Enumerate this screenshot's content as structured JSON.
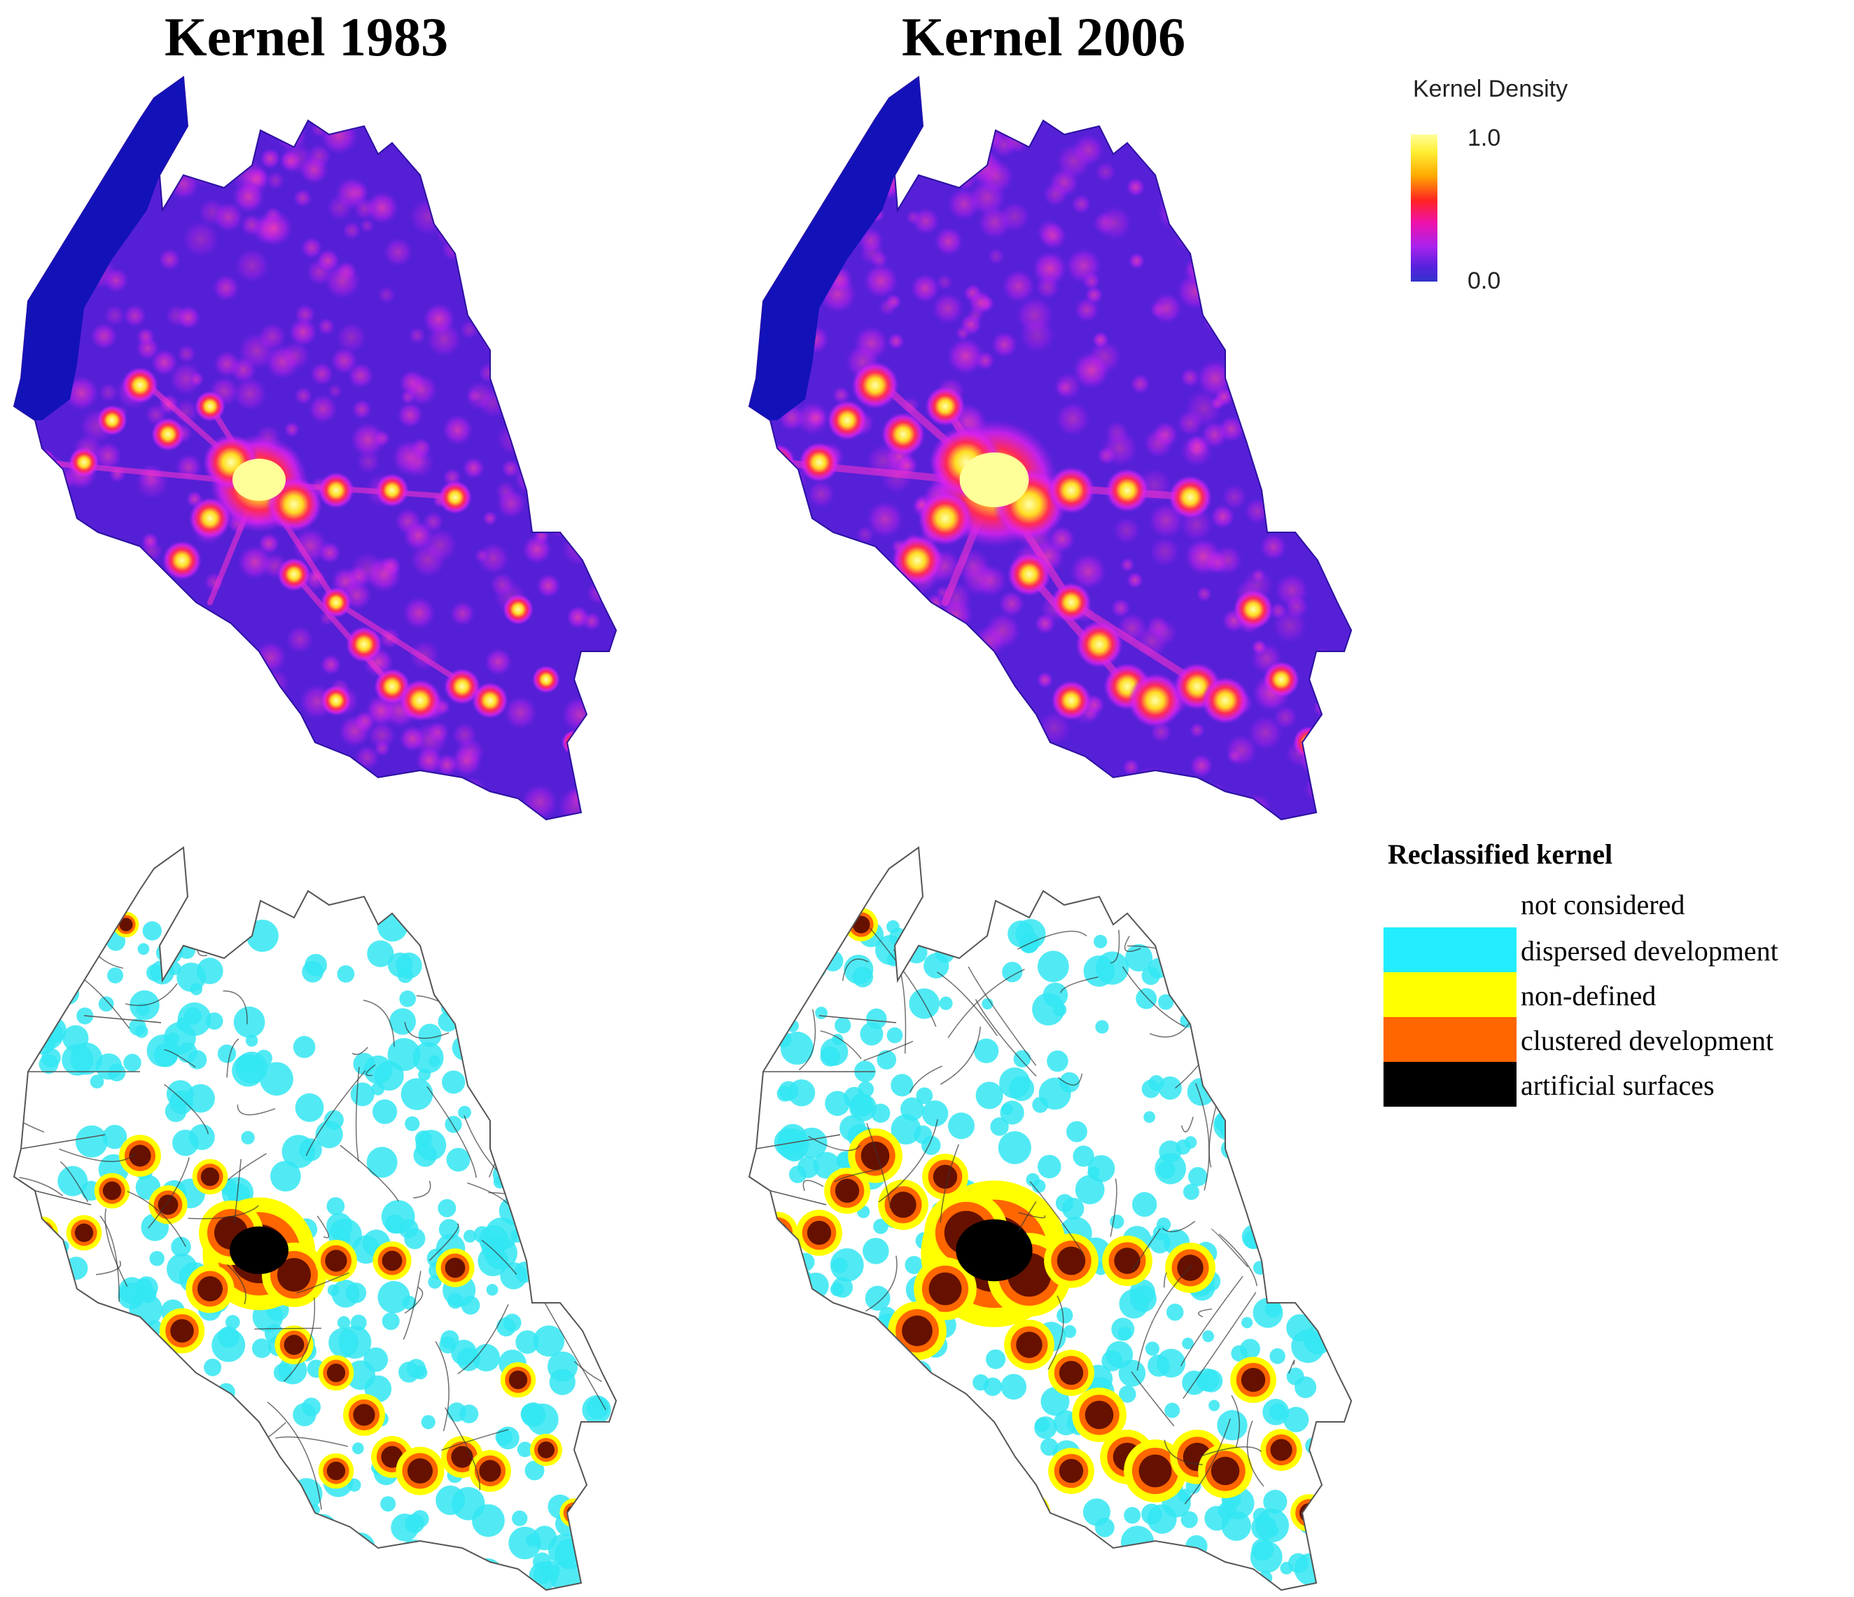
{
  "panels": {
    "left_title": "Kernel 1983",
    "right_title": "Kernel 2006"
  },
  "kernel_legend": {
    "title": "Kernel Density",
    "max_label": "1.0",
    "min_label": "0.0",
    "colors": [
      "#ffff99",
      "#ffaa00",
      "#ff2222",
      "#ee11aa",
      "#aa22ee",
      "#3333cc"
    ]
  },
  "reclass_legend": {
    "title": "Reclassified kernel",
    "items": [
      {
        "label": "not considered",
        "color": "#ffffff"
      },
      {
        "label": "dispersed development",
        "color": "#22eeff"
      },
      {
        "label": "non-defined",
        "color": "#ffff00"
      },
      {
        "label": "clustered development",
        "color": "#ff6600"
      },
      {
        "label": "artificial surfaces",
        "color": "#000000"
      }
    ]
  }
}
